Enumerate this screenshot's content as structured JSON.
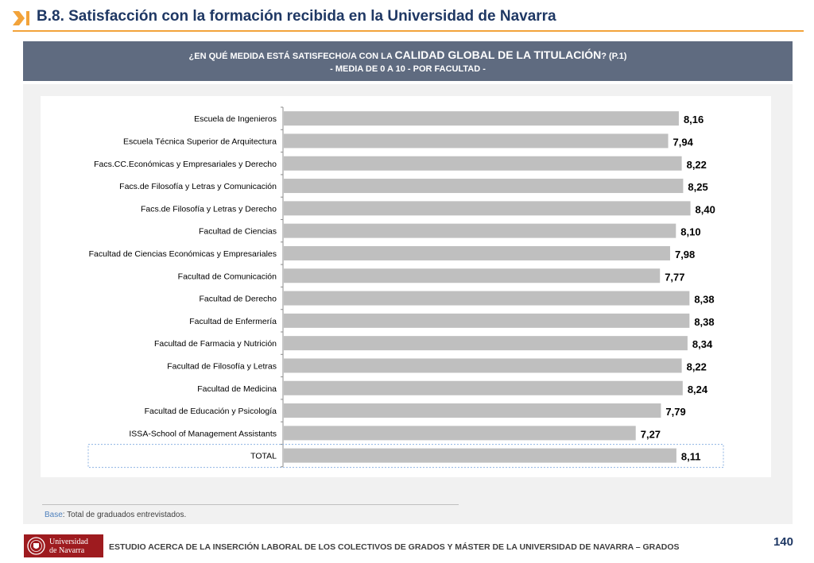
{
  "header": {
    "title": "B.8. Satisfacción con la formación recibida en la Universidad de Navarra",
    "accent_color": "#f2a33a",
    "title_color": "#1f3864",
    "mark_icon": "chevron-bar-icon"
  },
  "banner": {
    "question_prefix": "¿EN QUÉ MEDIDA ESTÁ SATISFECHO/A CON LA ",
    "question_highlight": "CALIDAD GLOBAL DE LA TITULACIÓN",
    "question_suffix": "? (P.1)",
    "subtitle": "- MEDIA DE 0 A 10 - POR FACULTAD -",
    "background_color": "#5f6b80"
  },
  "chart_data": {
    "type": "bar",
    "orientation": "horizontal",
    "title": "¿EN QUÉ MEDIDA ESTÁ SATISFECHO/A CON LA CALIDAD GLOBAL DE LA TITULACIÓN? (P.1) - MEDIA DE 0 A 10 - POR FACULTAD -",
    "xlabel": "",
    "ylabel": "",
    "xlim": [
      0,
      10
    ],
    "grid": false,
    "bar_color": "#bfbfbf",
    "highlight_category": "TOTAL",
    "categories": [
      "Escuela de Ingenieros",
      "Escuela Técnica Superior de Arquitectura",
      "Facs.CC.Económicas y Empresariales y Derecho",
      "Facs.de Filosofía y Letras y Comunicación",
      "Facs.de Filosofía y Letras y Derecho",
      "Facultad de Ciencias",
      "Facultad de Ciencias Económicas y Empresariales",
      "Facultad de Comunicación",
      "Facultad de Derecho",
      "Facultad de Enfermería",
      "Facultad de Farmacia y Nutrición",
      "Facultad de Filosofía y Letras",
      "Facultad de Medicina",
      "Facultad de Educación y Psicología",
      "ISSA-School of Management Assistants",
      "TOTAL"
    ],
    "values": [
      8.16,
      7.94,
      8.22,
      8.25,
      8.4,
      8.1,
      7.98,
      7.77,
      8.38,
      8.38,
      8.34,
      8.22,
      8.24,
      7.79,
      7.27,
      8.11
    ],
    "value_labels": [
      "8,16",
      "7,94",
      "8,22",
      "8,25",
      "8,40",
      "8,10",
      "7,98",
      "7,77",
      "8,38",
      "8,38",
      "8,34",
      "8,22",
      "8,24",
      "7,79",
      "7,27",
      "8,11"
    ]
  },
  "base_note": {
    "label": "Base",
    "text": ": Total de graduados entrevistados."
  },
  "footer": {
    "logo_line1": "Universidad",
    "logo_line2": "de Navarra",
    "logo_color": "#9e1b1f",
    "text": "ESTUDIO ACERCA DE LA INSERCIÓN LABORAL DE LOS COLECTIVOS DE GRADOS Y MÁSTER DE LA UNIVERSIDAD DE NAVARRA – GRADOS",
    "page_number": "140"
  }
}
